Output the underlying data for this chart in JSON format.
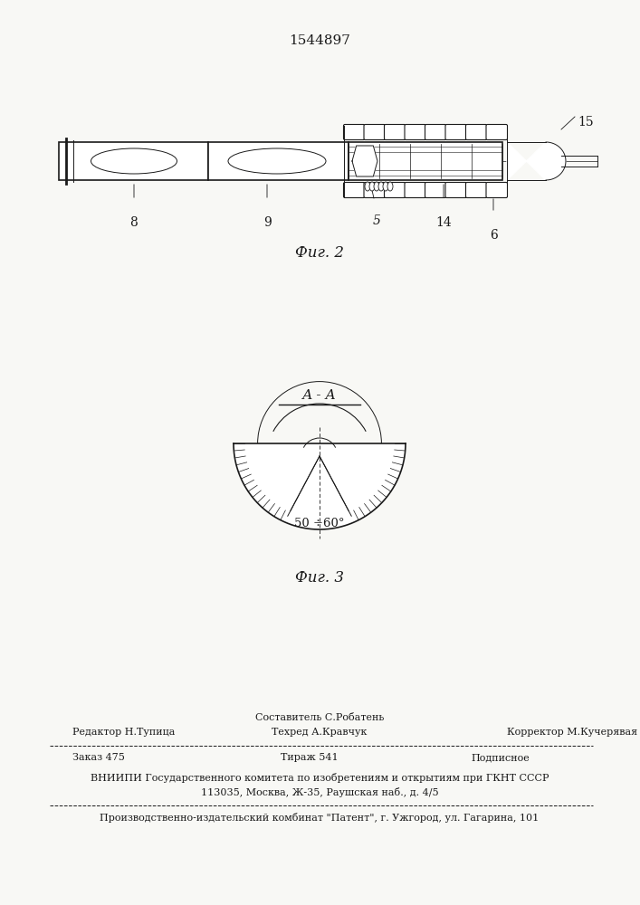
{
  "patent_number": "1544897",
  "fig2_label": "Фиг. 2",
  "fig3_label": "Фиг. 3",
  "section_label": "А - А",
  "angle_label": "50 ÷60°",
  "bg_color": "#f8f8f5",
  "line_color": "#1a1a1a",
  "text_color": "#1a1a1a",
  "footer_sestavitel": "Составитель С.Робатень",
  "footer_editor": "Редактор Н.Тупица",
  "footer_tehred": "Техред А.Кравчук",
  "footer_korrektor": "Корректор М.Кучерявая",
  "footer_zakaz": "Заказ 475",
  "footer_tirazh": "Тираж 541",
  "footer_podpisnoe": "Подписное",
  "footer_vniip1": "ВНИИПИ Государственного комитета по изобретениям и открытиям при ГКНТ СССР",
  "footer_vniip2": "113035, Москва, Ж-35, Раушская наб., д. 4/5",
  "footer_proizvod": "Производственно-издательский комбинат \"Патент\", г. Ужгород, ул. Гагарина, 101"
}
